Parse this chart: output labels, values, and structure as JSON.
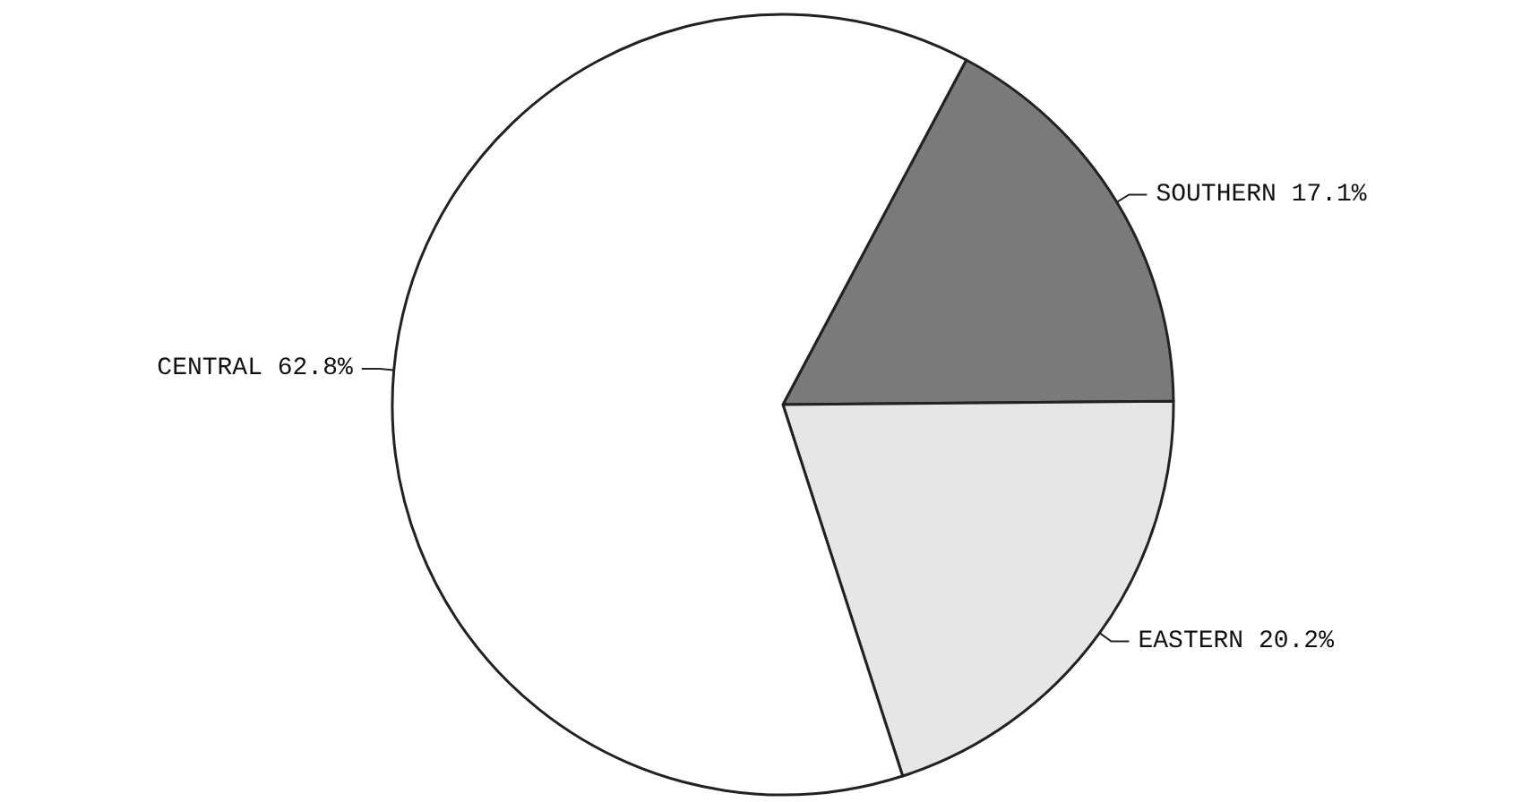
{
  "chart_data": {
    "type": "pie",
    "categories": [
      "SOUTHERN",
      "EASTERN",
      "CENTRAL"
    ],
    "values": [
      17.1,
      20.2,
      62.8
    ],
    "value_labels": [
      "17.1%",
      "20.2%",
      "62.8%"
    ],
    "colors": [
      "#7a7a7a",
      "#e6e6e6",
      "#ffffff"
    ]
  }
}
